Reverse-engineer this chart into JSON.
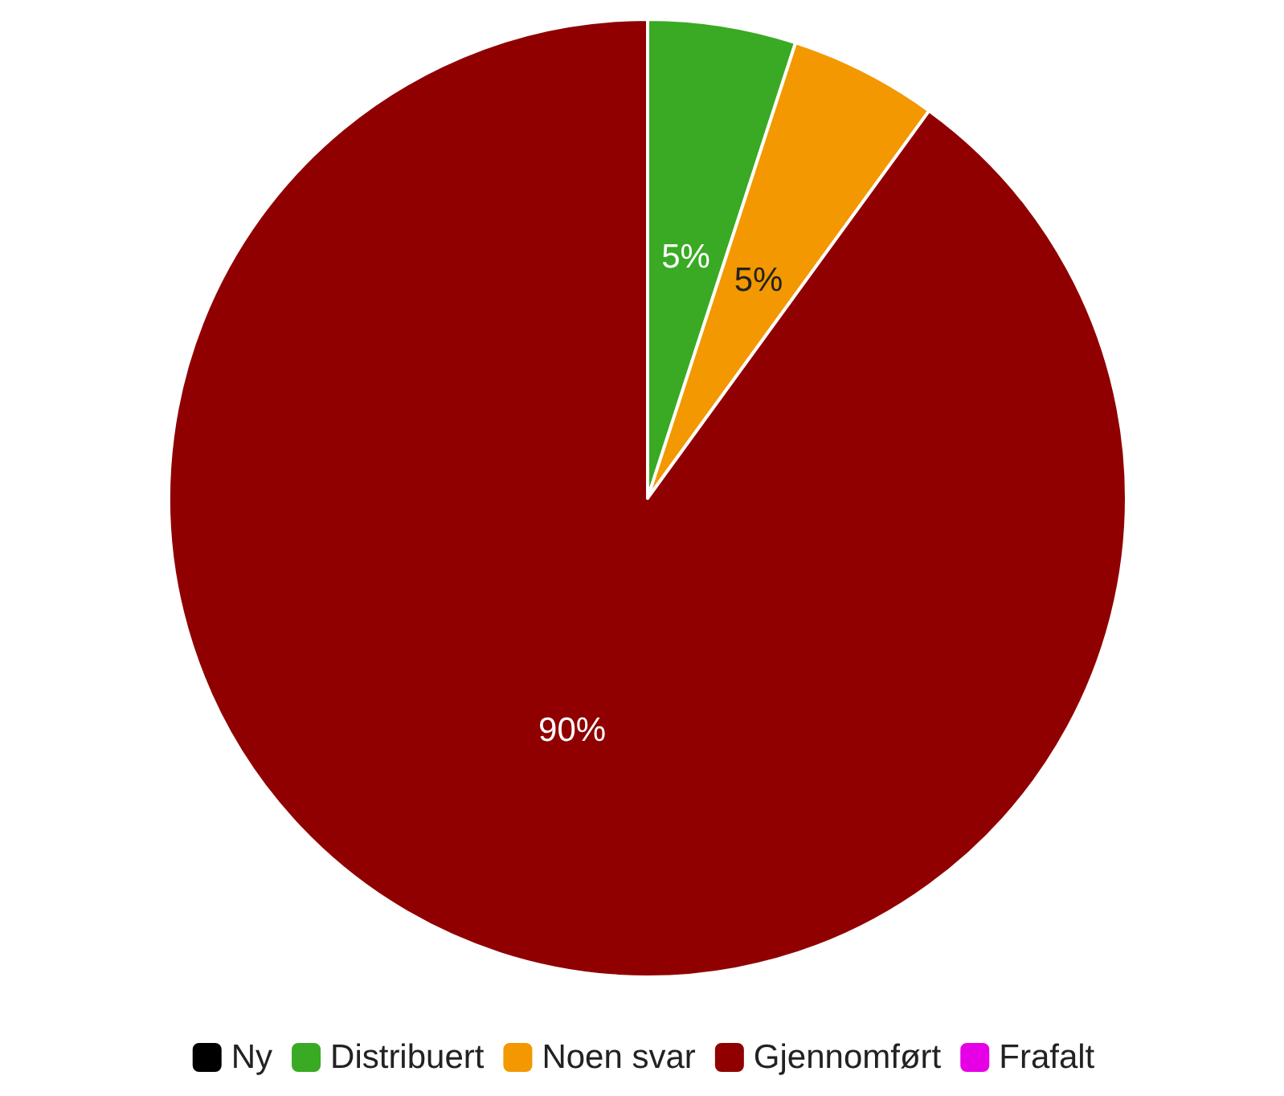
{
  "chart_data": {
    "type": "pie",
    "categories": [
      "Ny",
      "Distribuert",
      "Noen svar",
      "Gjennomført",
      "Frafalt"
    ],
    "values": [
      0,
      5,
      5,
      90,
      0
    ],
    "colors": [
      "#000000",
      "#3aaa24",
      "#f39800",
      "#900000",
      "#e600e6"
    ],
    "value_labels": [
      null,
      "5%",
      "5%",
      "90%",
      null
    ],
    "legend": "bottom"
  }
}
